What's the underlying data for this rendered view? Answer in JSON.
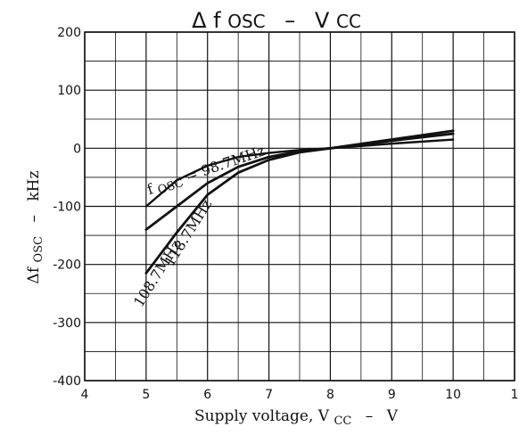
{
  "chart_data": {
    "type": "line",
    "title": "Δfosc – Vcc",
    "title_parts": {
      "delta": "Δ",
      "f": "f",
      "f_sub": "OSC",
      "dash": "–",
      "v": "V",
      "v_sub": "CC"
    },
    "xlabel": "Supply voltage, VCC – V",
    "xlabel_parts": {
      "prefix": "Supply voltage, V",
      "sub": "CC",
      "dash": "–",
      "unit": "V"
    },
    "ylabel": "ΔfOSC – kHz",
    "ylabel_parts": {
      "delta": "Δf",
      "sub": "OSC",
      "dash": "–",
      "unit": "kHz"
    },
    "xlim": [
      4,
      11
    ],
    "ylim": [
      -400,
      200
    ],
    "grid": true,
    "grid_minor_x": 0.5,
    "grid_minor_y": 50,
    "x_ticks": [
      "4",
      "5",
      "6",
      "7",
      "8",
      "9",
      "10",
      "1"
    ],
    "y_ticks": [
      "200",
      "100",
      "0",
      "-100",
      "-200",
      "-300",
      "-400"
    ],
    "series": [
      {
        "name": "fOSC = 98.7MHz",
        "name_parts": {
          "f": "f",
          "sub": "OSC",
          "rest": " = 98.7MHz"
        },
        "x": [
          5,
          5.5,
          6,
          6.5,
          7,
          7.5,
          8,
          9,
          10
        ],
        "y": [
          -100,
          -55,
          -30,
          -15,
          -8,
          -3,
          0,
          8,
          15
        ]
      },
      {
        "name": "108.7MHz",
        "x": [
          5,
          5.5,
          6,
          6.5,
          7,
          7.5,
          8,
          9,
          10
        ],
        "y": [
          -140,
          -100,
          -60,
          -32,
          -15,
          -5,
          0,
          13,
          25
        ]
      },
      {
        "name": "118.7MHz",
        "x": [
          5,
          5.5,
          6,
          6.5,
          7,
          7.5,
          8,
          9,
          10
        ],
        "y": [
          -215,
          -145,
          -80,
          -42,
          -20,
          -7,
          0,
          15,
          30
        ]
      }
    ]
  },
  "colors": {
    "line": "#111111",
    "grid": "#111111",
    "background": "#ffffff"
  }
}
